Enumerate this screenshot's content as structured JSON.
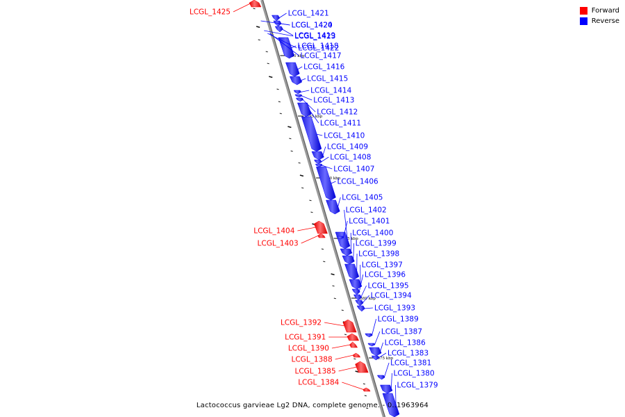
{
  "legend": {
    "forward": {
      "label": "Forward",
      "color": "#ff0000"
    },
    "reverse": {
      "label": "Reverse",
      "color": "#0000ff"
    }
  },
  "caption": "Lactococcus garvieae Lg2 DNA, complete genome. - 0..1963964",
  "ticks": [
    {
      "label": "1400 kbp",
      "kbp": 1400
    },
    {
      "label": "1395 kbp",
      "kbp": 1395
    },
    {
      "label": "1390 kbp",
      "kbp": 1390
    },
    {
      "label": "1385 kbp",
      "kbp": 1385
    },
    {
      "label": "1380 kbp",
      "kbp": 1380
    },
    {
      "label": "1375 kbp",
      "kbp": 1375
    }
  ],
  "genes": [
    {
      "name": "LCGL_1425",
      "strand": "forward"
    },
    {
      "name": "LCGL_1424",
      "strand": "reverse"
    },
    {
      "name": "LCGL_1423",
      "strand": "reverse"
    },
    {
      "name": "LCGL_1422",
      "strand": "reverse"
    },
    {
      "name": "LCGL_1421",
      "strand": "reverse"
    },
    {
      "name": "LCGL_1420",
      "strand": "reverse"
    },
    {
      "name": "LCGL_1419",
      "strand": "reverse"
    },
    {
      "name": "LCGL_1418",
      "strand": "reverse"
    },
    {
      "name": "LCGL_1417",
      "strand": "reverse"
    },
    {
      "name": "LCGL_1416",
      "strand": "reverse"
    },
    {
      "name": "LCGL_1415",
      "strand": "reverse"
    },
    {
      "name": "LCGL_1414",
      "strand": "reverse"
    },
    {
      "name": "LCGL_1413",
      "strand": "reverse"
    },
    {
      "name": "LCGL_1412",
      "strand": "reverse"
    },
    {
      "name": "LCGL_1411",
      "strand": "reverse"
    },
    {
      "name": "LCGL_1410",
      "strand": "reverse"
    },
    {
      "name": "LCGL_1409",
      "strand": "reverse"
    },
    {
      "name": "LCGL_1408",
      "strand": "reverse"
    },
    {
      "name": "LCGL_1407",
      "strand": "reverse"
    },
    {
      "name": "LCGL_1406",
      "strand": "reverse"
    },
    {
      "name": "LCGL_1405",
      "strand": "reverse"
    },
    {
      "name": "LCGL_1404",
      "strand": "forward"
    },
    {
      "name": "LCGL_1403",
      "strand": "forward"
    },
    {
      "name": "LCGL_1402",
      "strand": "reverse"
    },
    {
      "name": "LCGL_1401",
      "strand": "reverse"
    },
    {
      "name": "LCGL_1400",
      "strand": "reverse"
    },
    {
      "name": "LCGL_1399",
      "strand": "reverse"
    },
    {
      "name": "LCGL_1398",
      "strand": "reverse"
    },
    {
      "name": "LCGL_1397",
      "strand": "reverse"
    },
    {
      "name": "LCGL_1396",
      "strand": "reverse"
    },
    {
      "name": "LCGL_1395",
      "strand": "reverse"
    },
    {
      "name": "LCGL_1394",
      "strand": "reverse"
    },
    {
      "name": "LCGL_1393",
      "strand": "reverse"
    },
    {
      "name": "LCGL_1392",
      "strand": "forward"
    },
    {
      "name": "LCGL_1391",
      "strand": "forward"
    },
    {
      "name": "LCGL_1390",
      "strand": "forward"
    },
    {
      "name": "LCGL_1389",
      "strand": "reverse"
    },
    {
      "name": "LCGL_1388",
      "strand": "forward"
    },
    {
      "name": "LCGL_1387",
      "strand": "reverse"
    },
    {
      "name": "LCGL_1386",
      "strand": "reverse"
    },
    {
      "name": "LCGL_1385",
      "strand": "forward"
    },
    {
      "name": "LCGL_1384",
      "strand": "forward"
    },
    {
      "name": "LCGL_1383",
      "strand": "reverse"
    },
    {
      "name": "LCGL_1381",
      "strand": "reverse"
    },
    {
      "name": "LCGL_1380",
      "strand": "reverse"
    },
    {
      "name": "LCGL_1379",
      "strand": "reverse"
    }
  ]
}
